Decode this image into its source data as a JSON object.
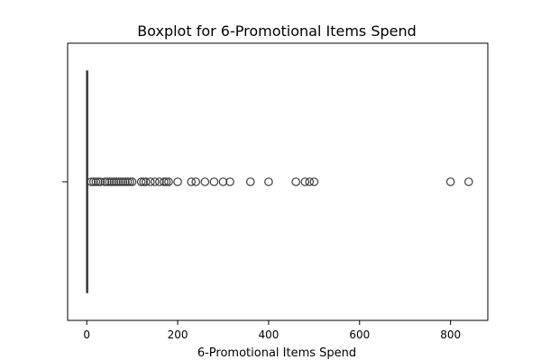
{
  "chart_data": {
    "type": "box",
    "orientation": "horizontal",
    "title": "Boxplot for 6-Promotional Items Spend",
    "xlabel": "6-Promotional Items Spend",
    "ylabel": "",
    "xlim": [
      -42,
      882
    ],
    "xticks": [
      0,
      200,
      400,
      600,
      800
    ],
    "box": {
      "min": 0,
      "q1": 0,
      "median": 0,
      "q3": 0,
      "max": 0
    },
    "outliers": [
      10,
      15,
      20,
      25,
      30,
      40,
      45,
      50,
      55,
      60,
      65,
      70,
      75,
      80,
      85,
      90,
      95,
      100,
      120,
      125,
      130,
      140,
      150,
      160,
      170,
      175,
      180,
      200,
      230,
      240,
      260,
      280,
      300,
      315,
      360,
      400,
      460,
      480,
      490,
      500,
      800,
      840
    ],
    "colors": {
      "box": "#3d3d3d",
      "outlier": "#3d3d3d",
      "frame": "#000000"
    },
    "grid": false
  }
}
